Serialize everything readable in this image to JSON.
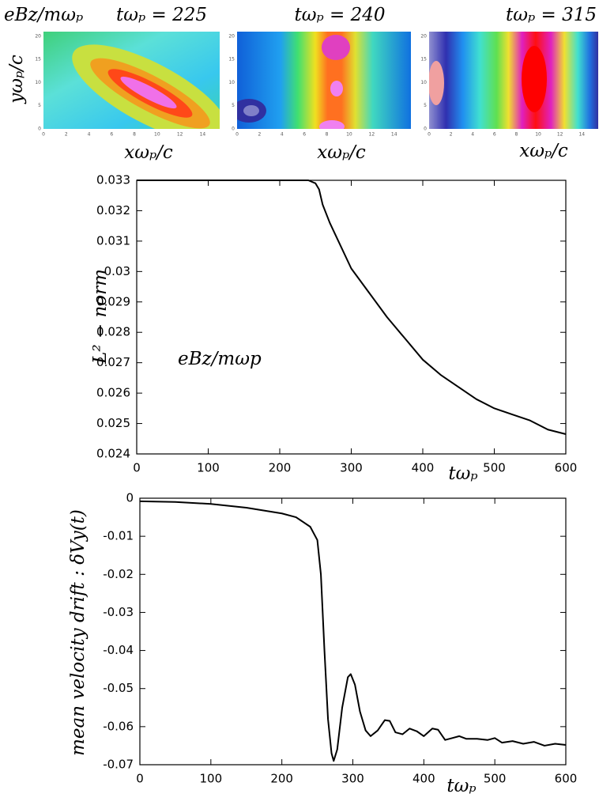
{
  "chart_data": [
    {
      "type": "heatmap",
      "annotation": "eBz/mωₚ",
      "title": "tωₚ = 225",
      "xlabel": "xωₚ/c",
      "ylabel": "yωₚ/c",
      "xlim": [
        0,
        15.5
      ],
      "xticks": [
        0,
        2,
        4,
        6,
        8,
        10,
        12,
        14
      ],
      "ylim": [
        0,
        21
      ],
      "yticks": [
        0,
        5,
        10,
        15,
        20
      ]
    },
    {
      "type": "heatmap",
      "title": "tωₚ = 240",
      "xlabel": "xωₚ/c",
      "xlim": [
        0,
        15.5
      ],
      "xticks": [
        0,
        2,
        4,
        6,
        8,
        10,
        12,
        14
      ],
      "ylim": [
        0,
        21
      ],
      "yticks": [
        0,
        5,
        10,
        15,
        20
      ]
    },
    {
      "type": "heatmap",
      "title": "tωₚ = 315",
      "xlabel": "xωₚ/c",
      "xlim": [
        0,
        15.5
      ],
      "xticks": [
        0,
        2,
        4,
        6,
        8,
        10,
        12,
        14
      ],
      "ylim": [
        0,
        21
      ],
      "yticks": [
        0,
        5,
        10,
        15,
        20
      ]
    },
    {
      "type": "line",
      "ylabel": "L² − norm",
      "xlabel": "tωₚ",
      "annotation": "eBz/mωp",
      "color": "#000000",
      "x": [
        0,
        50,
        100,
        150,
        200,
        240,
        250,
        255,
        260,
        270,
        280,
        300,
        325,
        350,
        375,
        400,
        425,
        450,
        475,
        500,
        525,
        550,
        575,
        600
      ],
      "values": [
        0.033,
        0.033,
        0.033,
        0.033,
        0.033,
        0.033,
        0.0329,
        0.0327,
        0.0322,
        0.0316,
        0.0311,
        0.0301,
        0.0293,
        0.0285,
        0.0278,
        0.0271,
        0.0266,
        0.0262,
        0.0258,
        0.0255,
        0.0253,
        0.0251,
        0.0248,
        0.02465
      ],
      "xlim": [
        0,
        600
      ],
      "xticks": [
        0,
        100,
        200,
        300,
        400,
        500,
        600
      ],
      "ylim": [
        0.024,
        0.033
      ],
      "yticks": [
        0.024,
        0.025,
        0.026,
        0.027,
        0.028,
        0.029,
        0.03,
        0.031,
        0.032,
        0.033
      ]
    },
    {
      "type": "line",
      "ylabel": "mean velocity drift : δVy(t)",
      "xlabel": "tωₚ",
      "color": "#000000",
      "x": [
        0,
        50,
        100,
        150,
        200,
        220,
        240,
        250,
        255,
        260,
        265,
        270,
        273,
        278,
        285,
        293,
        297,
        303,
        310,
        318,
        325,
        335,
        345,
        352,
        360,
        370,
        380,
        390,
        400,
        412,
        420,
        430,
        440,
        450,
        460,
        475,
        490,
        500,
        510,
        525,
        540,
        555,
        570,
        585,
        600
      ],
      "values": [
        -0.0008,
        -0.001,
        -0.0015,
        -0.0025,
        -0.004,
        -0.005,
        -0.0075,
        -0.011,
        -0.02,
        -0.04,
        -0.058,
        -0.067,
        -0.069,
        -0.066,
        -0.055,
        -0.047,
        -0.0462,
        -0.049,
        -0.056,
        -0.061,
        -0.0625,
        -0.061,
        -0.0583,
        -0.0585,
        -0.0615,
        -0.062,
        -0.0605,
        -0.0612,
        -0.0625,
        -0.0605,
        -0.0608,
        -0.0635,
        -0.063,
        -0.0625,
        -0.0632,
        -0.0632,
        -0.0635,
        -0.063,
        -0.0642,
        -0.0638,
        -0.0645,
        -0.064,
        -0.065,
        -0.0645,
        -0.0648
      ],
      "xlim": [
        0,
        600
      ],
      "xticks": [
        0,
        100,
        200,
        300,
        400,
        500,
        600
      ],
      "ylim": [
        -0.07,
        0
      ],
      "yticks": [
        0,
        -0.01,
        -0.02,
        -0.03,
        -0.04,
        -0.05,
        -0.06,
        -0.07
      ]
    }
  ]
}
